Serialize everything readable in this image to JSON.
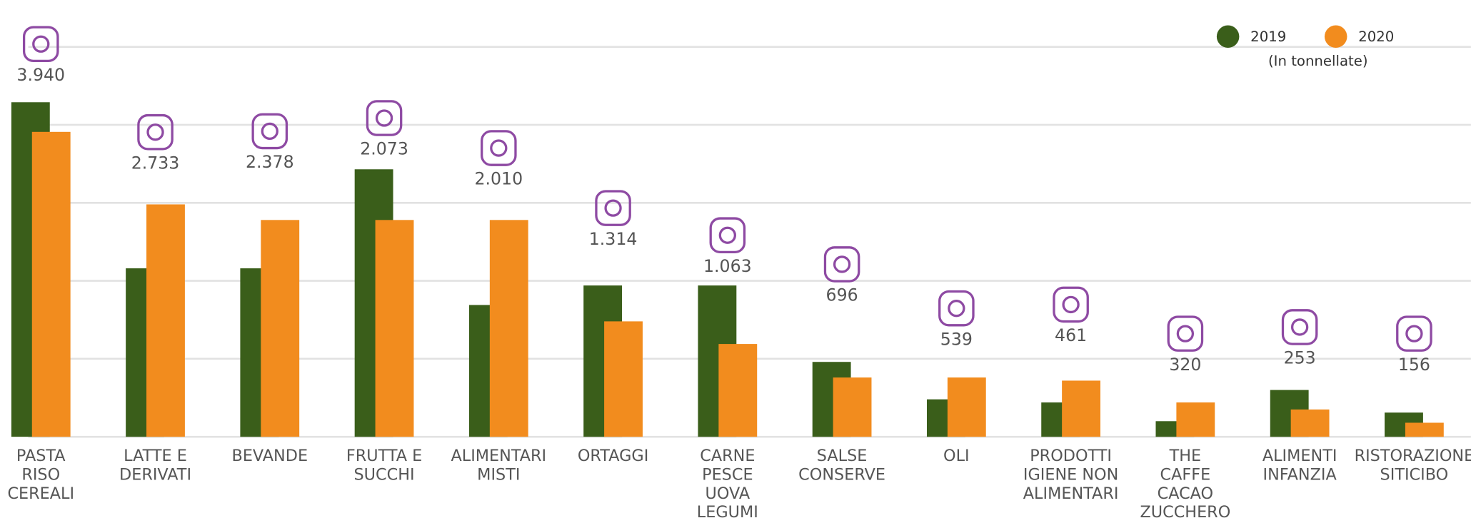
{
  "chart_data": {
    "type": "bar",
    "categories": [
      [
        "PASTA",
        "RISO",
        "CEREALI"
      ],
      [
        "LATTE E",
        "DERIVATI"
      ],
      [
        "BEVANDE"
      ],
      [
        "FRUTTA E",
        "SUCCHI"
      ],
      [
        "ALIMENTARI",
        "MISTI"
      ],
      [
        "ORTAGGI"
      ],
      [
        "CARNE",
        "PESCE",
        "UOVA",
        "LEGUMI"
      ],
      [
        "SALSE",
        "CONSERVE"
      ],
      [
        "OLI"
      ],
      [
        "PRODOTTI",
        "IGIENE NON",
        "ALIMENTARI"
      ],
      [
        "THE",
        "CAFFE",
        "CACAO",
        "ZUCCHERO"
      ],
      [
        "ALIMENTI",
        "INFANZIA"
      ],
      [
        "RISTORAZIONE",
        "SITICIBO"
      ]
    ],
    "series": [
      {
        "name": "2019",
        "color": "#3a5e1a",
        "values": [
          4290,
          2160,
          2160,
          3430,
          1690,
          1940,
          1940,
          960,
          480,
          440,
          200,
          600,
          310
        ]
      },
      {
        "name": "2020",
        "color": "#f28c1e",
        "values": [
          3910,
          2980,
          2780,
          2780,
          2780,
          1480,
          1190,
          760,
          760,
          720,
          440,
          350,
          180
        ]
      }
    ],
    "annotations": [
      "3.940",
      "2.733",
      "2.378",
      "2.073",
      "2.010",
      "1.314",
      "1.063",
      "696",
      "539",
      "461",
      "320",
      "253",
      "156"
    ],
    "unit_note": "(In tonnellate)",
    "ylim": [
      0,
      5000
    ],
    "yticks": [
      0,
      1000,
      2000,
      3000,
      4000,
      5000
    ],
    "grid": true,
    "legend": "top-right"
  }
}
